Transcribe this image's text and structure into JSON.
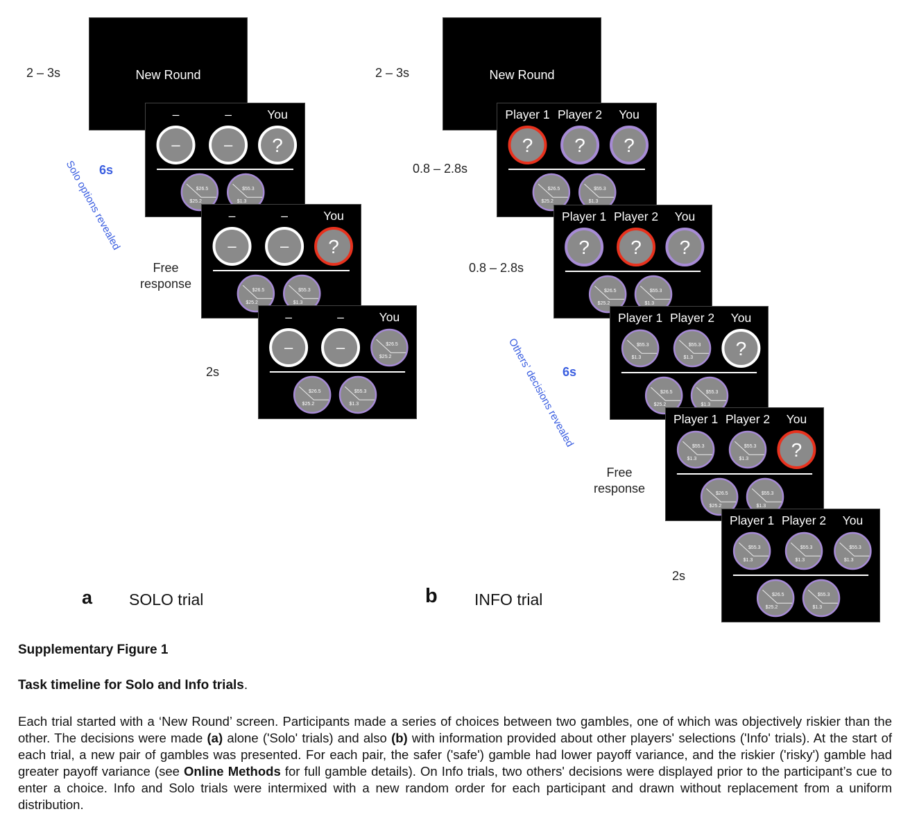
{
  "panel_a": {
    "label": "a",
    "title": "SOLO trial",
    "new_round_text": "New Round",
    "timing_new_round": "2 – 3s",
    "timing_options": "6s",
    "phase_options": "Solo options revealed",
    "phase_free": "Free response",
    "timing_outcome": "2s",
    "screens": [
      {
        "headers": [
          "–",
          "–",
          "You"
        ],
        "circles": [
          {
            "kind": "dash",
            "ring": "white"
          },
          {
            "kind": "dash",
            "ring": "white"
          },
          {
            "kind": "q",
            "ring": "white"
          }
        ],
        "gambles": [
          {
            "top": "$26.5",
            "bottom": "$25.2"
          },
          {
            "top": "$55.3",
            "bottom": "$1.3"
          }
        ]
      },
      {
        "headers": [
          "–",
          "–",
          "You"
        ],
        "circles": [
          {
            "kind": "dash",
            "ring": "white"
          },
          {
            "kind": "dash",
            "ring": "white"
          },
          {
            "kind": "q",
            "ring": "red"
          }
        ],
        "gambles": [
          {
            "top": "$26.5",
            "bottom": "$25.2"
          },
          {
            "top": "$55.3",
            "bottom": "$1.3"
          }
        ]
      },
      {
        "headers": [
          "–",
          "–",
          "You"
        ],
        "circles": [
          {
            "kind": "dash",
            "ring": "white"
          },
          {
            "kind": "dash",
            "ring": "white"
          },
          {
            "kind": "gamble",
            "top": "$26.5",
            "bottom": "$25.2"
          }
        ],
        "gambles": [
          {
            "top": "$26.5",
            "bottom": "$25.2"
          },
          {
            "top": "$55.3",
            "bottom": "$1.3"
          }
        ]
      }
    ]
  },
  "panel_b": {
    "label": "b",
    "title": "INFO trial",
    "new_round_text": "New Round",
    "timing_new_round": "2 – 3s",
    "timing_player1": "0.8 – 2.8s",
    "timing_player2": "0.8 – 2.8s",
    "timing_decisions": "6s",
    "phase_decisions": "Others’ decisions revealed",
    "phase_free": "Free response",
    "timing_outcome": "2s",
    "screens": [
      {
        "headers": [
          "Player 1",
          "Player 2",
          "You"
        ],
        "circles": [
          {
            "kind": "q",
            "ring": "red"
          },
          {
            "kind": "q",
            "ring": "purple"
          },
          {
            "kind": "q",
            "ring": "purple"
          }
        ],
        "gambles": [
          {
            "top": "$26.5",
            "bottom": "$25.2"
          },
          {
            "top": "$55.3",
            "bottom": "$1.3"
          }
        ]
      },
      {
        "headers": [
          "Player 1",
          "Player 2",
          "You"
        ],
        "circles": [
          {
            "kind": "q",
            "ring": "purple"
          },
          {
            "kind": "q",
            "ring": "red"
          },
          {
            "kind": "q",
            "ring": "purple"
          }
        ],
        "gambles": [
          {
            "top": "$26.5",
            "bottom": "$25.2"
          },
          {
            "top": "$55.3",
            "bottom": "$1.3"
          }
        ]
      },
      {
        "headers": [
          "Player 1",
          "Player 2",
          "You"
        ],
        "circles": [
          {
            "kind": "gamble",
            "top": "$55.3",
            "bottom": "$1.3"
          },
          {
            "kind": "gamble",
            "top": "$55.3",
            "bottom": "$1.3"
          },
          {
            "kind": "q",
            "ring": "white"
          }
        ],
        "gambles": [
          {
            "top": "$26.5",
            "bottom": "$25.2"
          },
          {
            "top": "$55.3",
            "bottom": "$1.3"
          }
        ]
      },
      {
        "headers": [
          "Player 1",
          "Player 2",
          "You"
        ],
        "circles": [
          {
            "kind": "gamble",
            "top": "$55.3",
            "bottom": "$1.3"
          },
          {
            "kind": "gamble",
            "top": "$55.3",
            "bottom": "$1.3"
          },
          {
            "kind": "q",
            "ring": "red"
          }
        ],
        "gambles": [
          {
            "top": "$26.5",
            "bottom": "$25.2"
          },
          {
            "top": "$55.3",
            "bottom": "$1.3"
          }
        ]
      },
      {
        "headers": [
          "Player 1",
          "Player 2",
          "You"
        ],
        "circles": [
          {
            "kind": "gamble",
            "top": "$55.3",
            "bottom": "$1.3"
          },
          {
            "kind": "gamble",
            "top": "$55.3",
            "bottom": "$1.3"
          },
          {
            "kind": "gamble",
            "top": "$55.3",
            "bottom": "$1.3"
          }
        ],
        "gambles": [
          {
            "top": "$26.5",
            "bottom": "$25.2"
          },
          {
            "top": "$55.3",
            "bottom": "$1.3"
          }
        ]
      }
    ]
  },
  "colors": {
    "screen_bg": "#000000",
    "circle_fill": "#8a8a8a",
    "ring_white": "#ffffff",
    "ring_red": "#e8321e",
    "ring_purple": "#a78bd6",
    "phase_blue": "#3a5ee0"
  },
  "caption": {
    "figure_title": "Supplementary Figure 1",
    "subtitle": "Task timeline for Solo and Info trials",
    "subtitle_end": ".",
    "body_1": "Each trial started with a ‘New Round’ screen. Participants made a series of choices between two gambles, one of which was objectively riskier than the other. The decisions were made ",
    "body_a": "(a)",
    "body_2": " alone ('Solo' trials) and also ",
    "body_b": "(b)",
    "body_3": " with information provided about other players' selections ('Info' trials). At the start of each trial, a new pair of gambles was presented. For each pair, the safer ('safe') gamble had lower payoff variance, and the riskier ('risky') gamble had greater payoff variance (see ",
    "body_methods": "Online Methods",
    "body_4": " for full gamble details). On Info trials, two others' decisions were displayed prior to the participant’s cue to enter a choice. Info and Solo trials were intermixed with a new random order for each participant and drawn without replacement from a uniform distribution."
  }
}
